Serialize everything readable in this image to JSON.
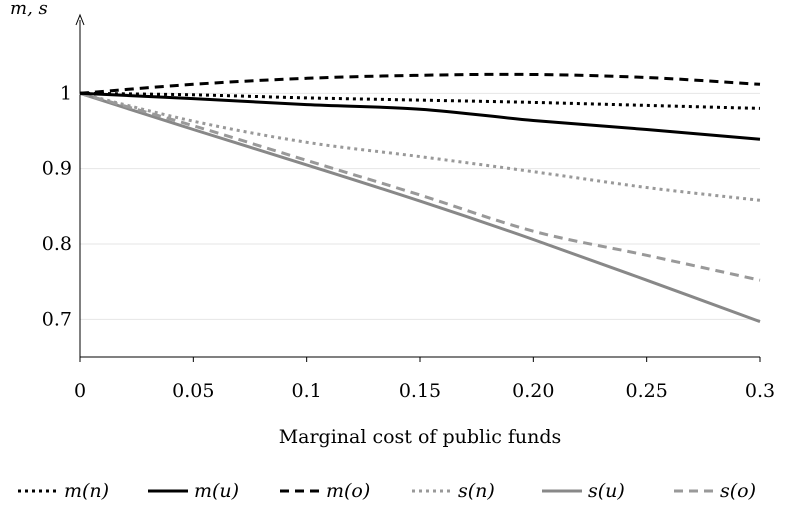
{
  "chart_data": {
    "type": "line",
    "title": "",
    "xlabel": "Marginal cost of public funds",
    "ylabel": "m, s",
    "xlim": [
      0,
      0.3
    ],
    "ylim": [
      0.65,
      1.1
    ],
    "x_ticks": [
      "0",
      "0.05",
      "0.1",
      "0.15",
      "0.20",
      "0.25",
      "0.3"
    ],
    "y_ticks": [
      "0.7",
      "0.8",
      "0.9",
      "1"
    ],
    "grid": true,
    "legend_position": "bottom",
    "x": [
      0,
      0.05,
      0.1,
      0.15,
      0.2,
      0.25,
      0.3
    ],
    "series": [
      {
        "name": "m(n)",
        "color": "#000000",
        "dash": "dotted",
        "values": [
          1.0,
          0.998,
          0.994,
          0.991,
          0.988,
          0.984,
          0.98
        ]
      },
      {
        "name": "m(u)",
        "color": "#000000",
        "dash": "solid",
        "values": [
          1.0,
          0.993,
          0.985,
          0.979,
          0.964,
          0.952,
          0.939
        ]
      },
      {
        "name": "m(o)",
        "color": "#000000",
        "dash": "dashed",
        "values": [
          1.0,
          1.012,
          1.02,
          1.024,
          1.025,
          1.021,
          1.012
        ]
      },
      {
        "name": "s(n)",
        "color": "#999999",
        "dash": "dotted",
        "values": [
          1.0,
          0.963,
          0.935,
          0.916,
          0.896,
          0.875,
          0.858
        ]
      },
      {
        "name": "s(u)",
        "color": "#888888",
        "dash": "solid",
        "values": [
          1.0,
          0.952,
          0.905,
          0.857,
          0.806,
          0.752,
          0.697
        ]
      },
      {
        "name": "s(o)",
        "color": "#999999",
        "dash": "dashed",
        "values": [
          1.0,
          0.957,
          0.911,
          0.865,
          0.817,
          0.785,
          0.752
        ]
      }
    ]
  }
}
